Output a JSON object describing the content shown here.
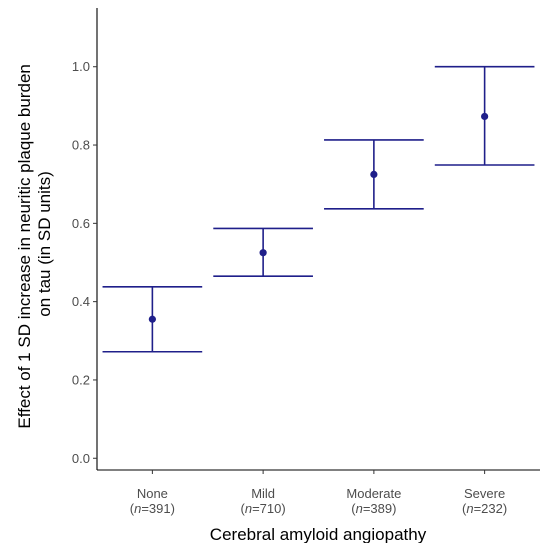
{
  "chart_data": {
    "type": "errorbar",
    "title": "",
    "xlabel": "Cerebral amyloid angiopathy",
    "ylabel": "Effect of 1 SD increase in neuritic plaque burden",
    "ylabel_line2": "on tau (in SD units)",
    "categories": [
      "None",
      "Mild",
      "Moderate",
      "Severe"
    ],
    "category_counts": [
      "n=391",
      "n=710",
      "n=389",
      "n=232"
    ],
    "estimate": [
      0.355,
      0.525,
      0.725,
      0.873
    ],
    "lower": [
      0.272,
      0.465,
      0.637,
      0.749
    ],
    "upper": [
      0.438,
      0.587,
      0.813,
      1.0
    ],
    "yticks": [
      0.0,
      0.2,
      0.4,
      0.6,
      0.8,
      1.0
    ],
    "ytick_labels": [
      "0.0",
      "0.2",
      "0.4",
      "0.6",
      "0.8",
      "1.0"
    ],
    "ylim": [
      -0.03,
      1.15
    ],
    "grid": false,
    "colors": {
      "series": "#1f1f8a",
      "axis": "#000000",
      "tick_label": "#4d4d4d"
    }
  }
}
